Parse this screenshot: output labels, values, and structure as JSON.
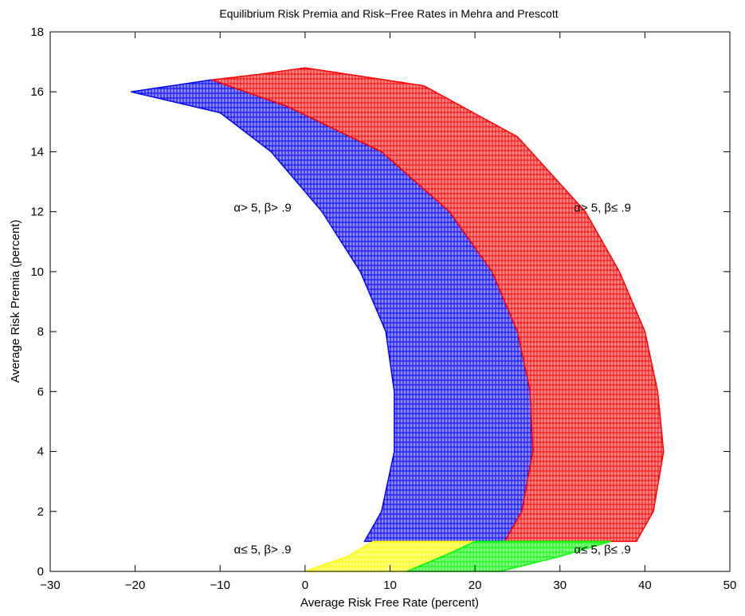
{
  "chart_data": {
    "type": "scatter",
    "title": "Equilibrium Risk Premia and Risk−Free Rates in Mehra and Prescott",
    "xlabel": "Average Risk Free Rate (percent)",
    "ylabel": "Average Risk Premia (percent)",
    "xlim": [
      -30,
      50
    ],
    "ylim": [
      0,
      18
    ],
    "xticks": [
      -30,
      -20,
      -10,
      0,
      10,
      20,
      30,
      40,
      50
    ],
    "xtick_labels": [
      "−30",
      "−20",
      "−10",
      "0",
      "10",
      "20",
      "30",
      "40",
      "50"
    ],
    "yticks": [
      0,
      2,
      4,
      6,
      8,
      10,
      12,
      14,
      16,
      18
    ],
    "ytick_labels": [
      "0",
      "2",
      "4",
      "6",
      "8",
      "10",
      "12",
      "14",
      "16",
      "18"
    ],
    "grid": false,
    "marker": "+",
    "annotations": [
      {
        "text": "α> 5, β> .9",
        "x": -5,
        "y": 12
      },
      {
        "text": "α> 5, β≤ .9",
        "x": 35,
        "y": 12
      },
      {
        "text": "α≤ 5, β> .9",
        "x": -5,
        "y": 0.6
      },
      {
        "text": "α≤ 5, β≤ .9",
        "x": 35,
        "y": 0.6
      }
    ],
    "regions": [
      {
        "label": "α> 5, β> .9",
        "color": "#0000ff",
        "polygon": [
          [
            -20.5,
            16.0
          ],
          [
            -11,
            16.4
          ],
          [
            -2,
            15.5
          ],
          [
            9,
            14.0
          ],
          [
            17,
            12.0
          ],
          [
            22,
            10.0
          ],
          [
            25,
            8.0
          ],
          [
            26.5,
            6.0
          ],
          [
            26.8,
            4.0
          ],
          [
            25.5,
            2.0
          ],
          [
            23.5,
            1.0
          ],
          [
            7,
            1.0
          ],
          [
            9,
            2.0
          ],
          [
            10.5,
            4.0
          ],
          [
            10.5,
            6.0
          ],
          [
            9.5,
            8.0
          ],
          [
            6.5,
            10.0
          ],
          [
            2,
            12.0
          ],
          [
            -4,
            14.0
          ],
          [
            -10,
            15.3
          ]
        ]
      },
      {
        "label": "α> 5, β≤ .9",
        "color": "#ff0000",
        "polygon": [
          [
            -11,
            16.4
          ],
          [
            -5,
            16.6
          ],
          [
            0,
            16.8
          ],
          [
            14,
            16.2
          ],
          [
            25,
            14.5
          ],
          [
            33,
            12.0
          ],
          [
            37,
            10.0
          ],
          [
            40,
            8.0
          ],
          [
            41.5,
            6.0
          ],
          [
            42.2,
            4.0
          ],
          [
            41,
            2.0
          ],
          [
            39,
            1.0
          ],
          [
            23.5,
            1.0
          ],
          [
            25.5,
            2.0
          ],
          [
            26.8,
            4.0
          ],
          [
            26.5,
            6.0
          ],
          [
            25,
            8.0
          ],
          [
            22,
            10.0
          ],
          [
            17,
            12.0
          ],
          [
            9,
            14.0
          ],
          [
            -2,
            15.5
          ]
        ]
      },
      {
        "label": "α≤ 5, β> .9",
        "color": "#ffff00",
        "polygon": [
          [
            0,
            0
          ],
          [
            5,
            0.5
          ],
          [
            8,
            1.0
          ],
          [
            20,
            1.0
          ],
          [
            17,
            0.6
          ],
          [
            12,
            0
          ]
        ]
      },
      {
        "label": "α≤ 5, β≤ .9",
        "color": "#00ff00",
        "polygon": [
          [
            12,
            0
          ],
          [
            17,
            0.6
          ],
          [
            20,
            1.0
          ],
          [
            36,
            1.0
          ],
          [
            30,
            0.5
          ],
          [
            23,
            0
          ]
        ]
      }
    ]
  }
}
